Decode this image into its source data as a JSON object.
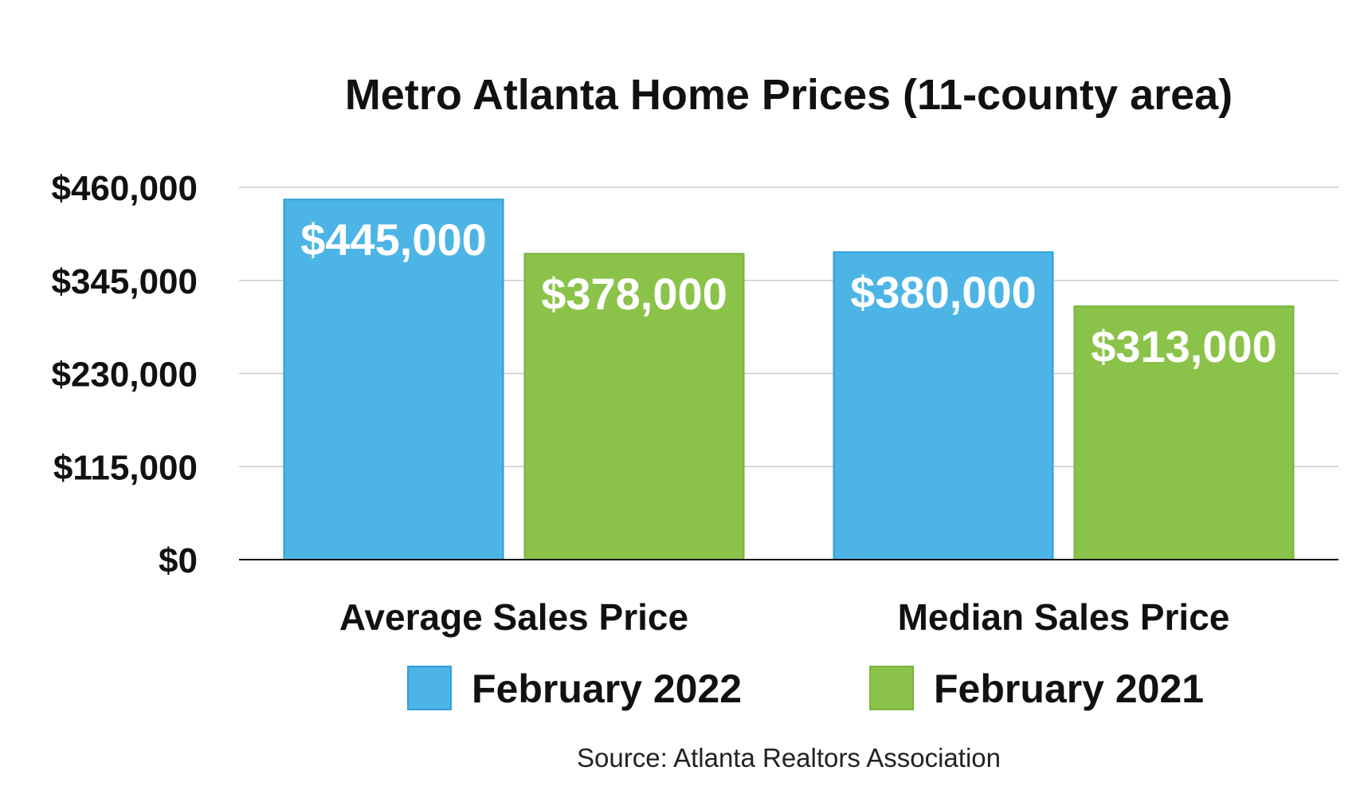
{
  "chart_data": {
    "type": "bar",
    "title": "Metro Atlanta Home Prices (11-county area)",
    "categories": [
      "Average Sales Price",
      "Median Sales Price"
    ],
    "series": [
      {
        "name": "February 2022",
        "values": [
          445000,
          380000
        ],
        "labels": [
          "$445,000",
          "$380,000"
        ],
        "color": "#4cb5e6"
      },
      {
        "name": "February 2021",
        "values": [
          378000,
          313000
        ],
        "labels": [
          "$378,000",
          "$313,000"
        ],
        "color": "#8bc34a"
      }
    ],
    "yticks": [
      0,
      115000,
      230000,
      345000,
      460000
    ],
    "ytick_labels": [
      "$0",
      "$115,000",
      "$230,000",
      "$345,000",
      "$460,000"
    ],
    "ylim": [
      0,
      460000
    ],
    "grid": true,
    "legend": "bottom",
    "xlabel": "",
    "ylabel": "",
    "source": "Source: Atlanta Realtors Association"
  }
}
